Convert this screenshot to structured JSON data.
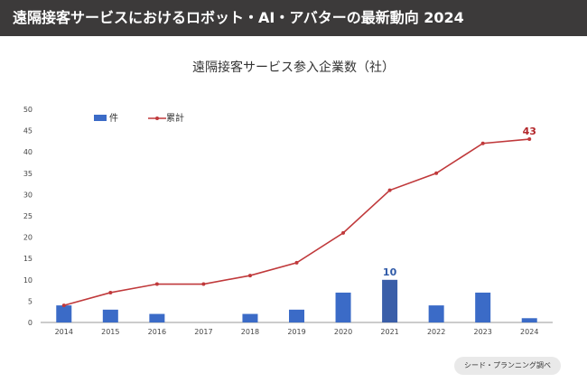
{
  "header": {
    "title": "遠隔接客サービスにおけるロボット・AI・アバターの最新動向 2024"
  },
  "source": {
    "label": "シード・プランニング調べ"
  },
  "chart_data": {
    "type": "bar+line",
    "title": "遠隔接客サービス参入企業数（社）",
    "categories": [
      "2014",
      "2015",
      "2016",
      "2017",
      "2018",
      "2019",
      "2020",
      "2021",
      "2022",
      "2023",
      "2024"
    ],
    "series": [
      {
        "name": "件",
        "type": "bar",
        "values": [
          4,
          3,
          2,
          0,
          2,
          3,
          7,
          10,
          4,
          7,
          1
        ]
      },
      {
        "name": "累計",
        "type": "line",
        "values": [
          4,
          7,
          9,
          9,
          11,
          14,
          21,
          31,
          35,
          42,
          43
        ]
      }
    ],
    "annotations": [
      {
        "series": "件",
        "category": "2021",
        "text": "10"
      },
      {
        "series": "累計",
        "category": "2024",
        "text": "43"
      }
    ],
    "yticks": [
      0,
      5,
      10,
      15,
      20,
      25,
      30,
      35,
      40,
      45,
      50
    ],
    "ylim": [
      0,
      50
    ],
    "grid": false,
    "legend": "top-left",
    "colors": {
      "bar": "#3b6bc7",
      "bar_highlight": "#3a5ea8",
      "line": "#c0393b",
      "label_bar": "#2f5aa8",
      "label_line": "#b3262a"
    }
  }
}
